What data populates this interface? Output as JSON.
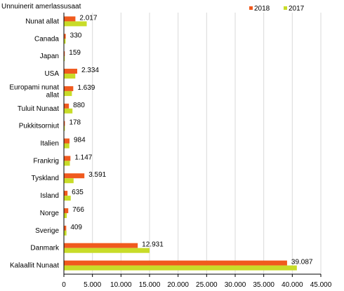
{
  "chart_data": {
    "type": "bar",
    "orientation": "horizontal",
    "title": "",
    "ylabel": "Unnuinerit amerlassusaat",
    "xlabel": "",
    "categories": [
      "Nunat allat",
      "Canada",
      "Japan",
      "USA",
      "Europami nunat allat",
      "Tuluit Nunaat",
      "Pukkitsorniut",
      "Italien",
      "Frankrig",
      "Tyskland",
      "Island",
      "Norge",
      "Sverige",
      "Danmark",
      "Kalaallit Nunaat"
    ],
    "series": [
      {
        "name": "2018",
        "color": "#f05a1e",
        "values": [
          2017,
          330,
          159,
          2334,
          1639,
          880,
          178,
          984,
          1147,
          3591,
          635,
          766,
          409,
          12931,
          39087
        ]
      },
      {
        "name": "2017",
        "color": "#c8dc28",
        "values": [
          4000,
          300,
          150,
          2000,
          1400,
          1500,
          170,
          950,
          1050,
          1700,
          1200,
          500,
          450,
          15000,
          40800
        ]
      }
    ],
    "data_labels": [
      "2.017",
      "330",
      "159",
      "2.334",
      "1.639",
      "880",
      "178",
      "984",
      "1.147",
      "3.591",
      "635",
      "766",
      "409",
      "12.931",
      "39.087"
    ],
    "xlim": [
      0,
      45000
    ],
    "xticks": [
      0,
      5000,
      10000,
      15000,
      20000,
      25000,
      30000,
      35000,
      40000,
      45000
    ],
    "xtick_labels": [
      "0",
      "5.000",
      "10.000",
      "15.000",
      "20.000",
      "25.000",
      "30.000",
      "35.000",
      "40.000",
      "45.000"
    ],
    "grid": true,
    "legend_position": "top-right"
  }
}
